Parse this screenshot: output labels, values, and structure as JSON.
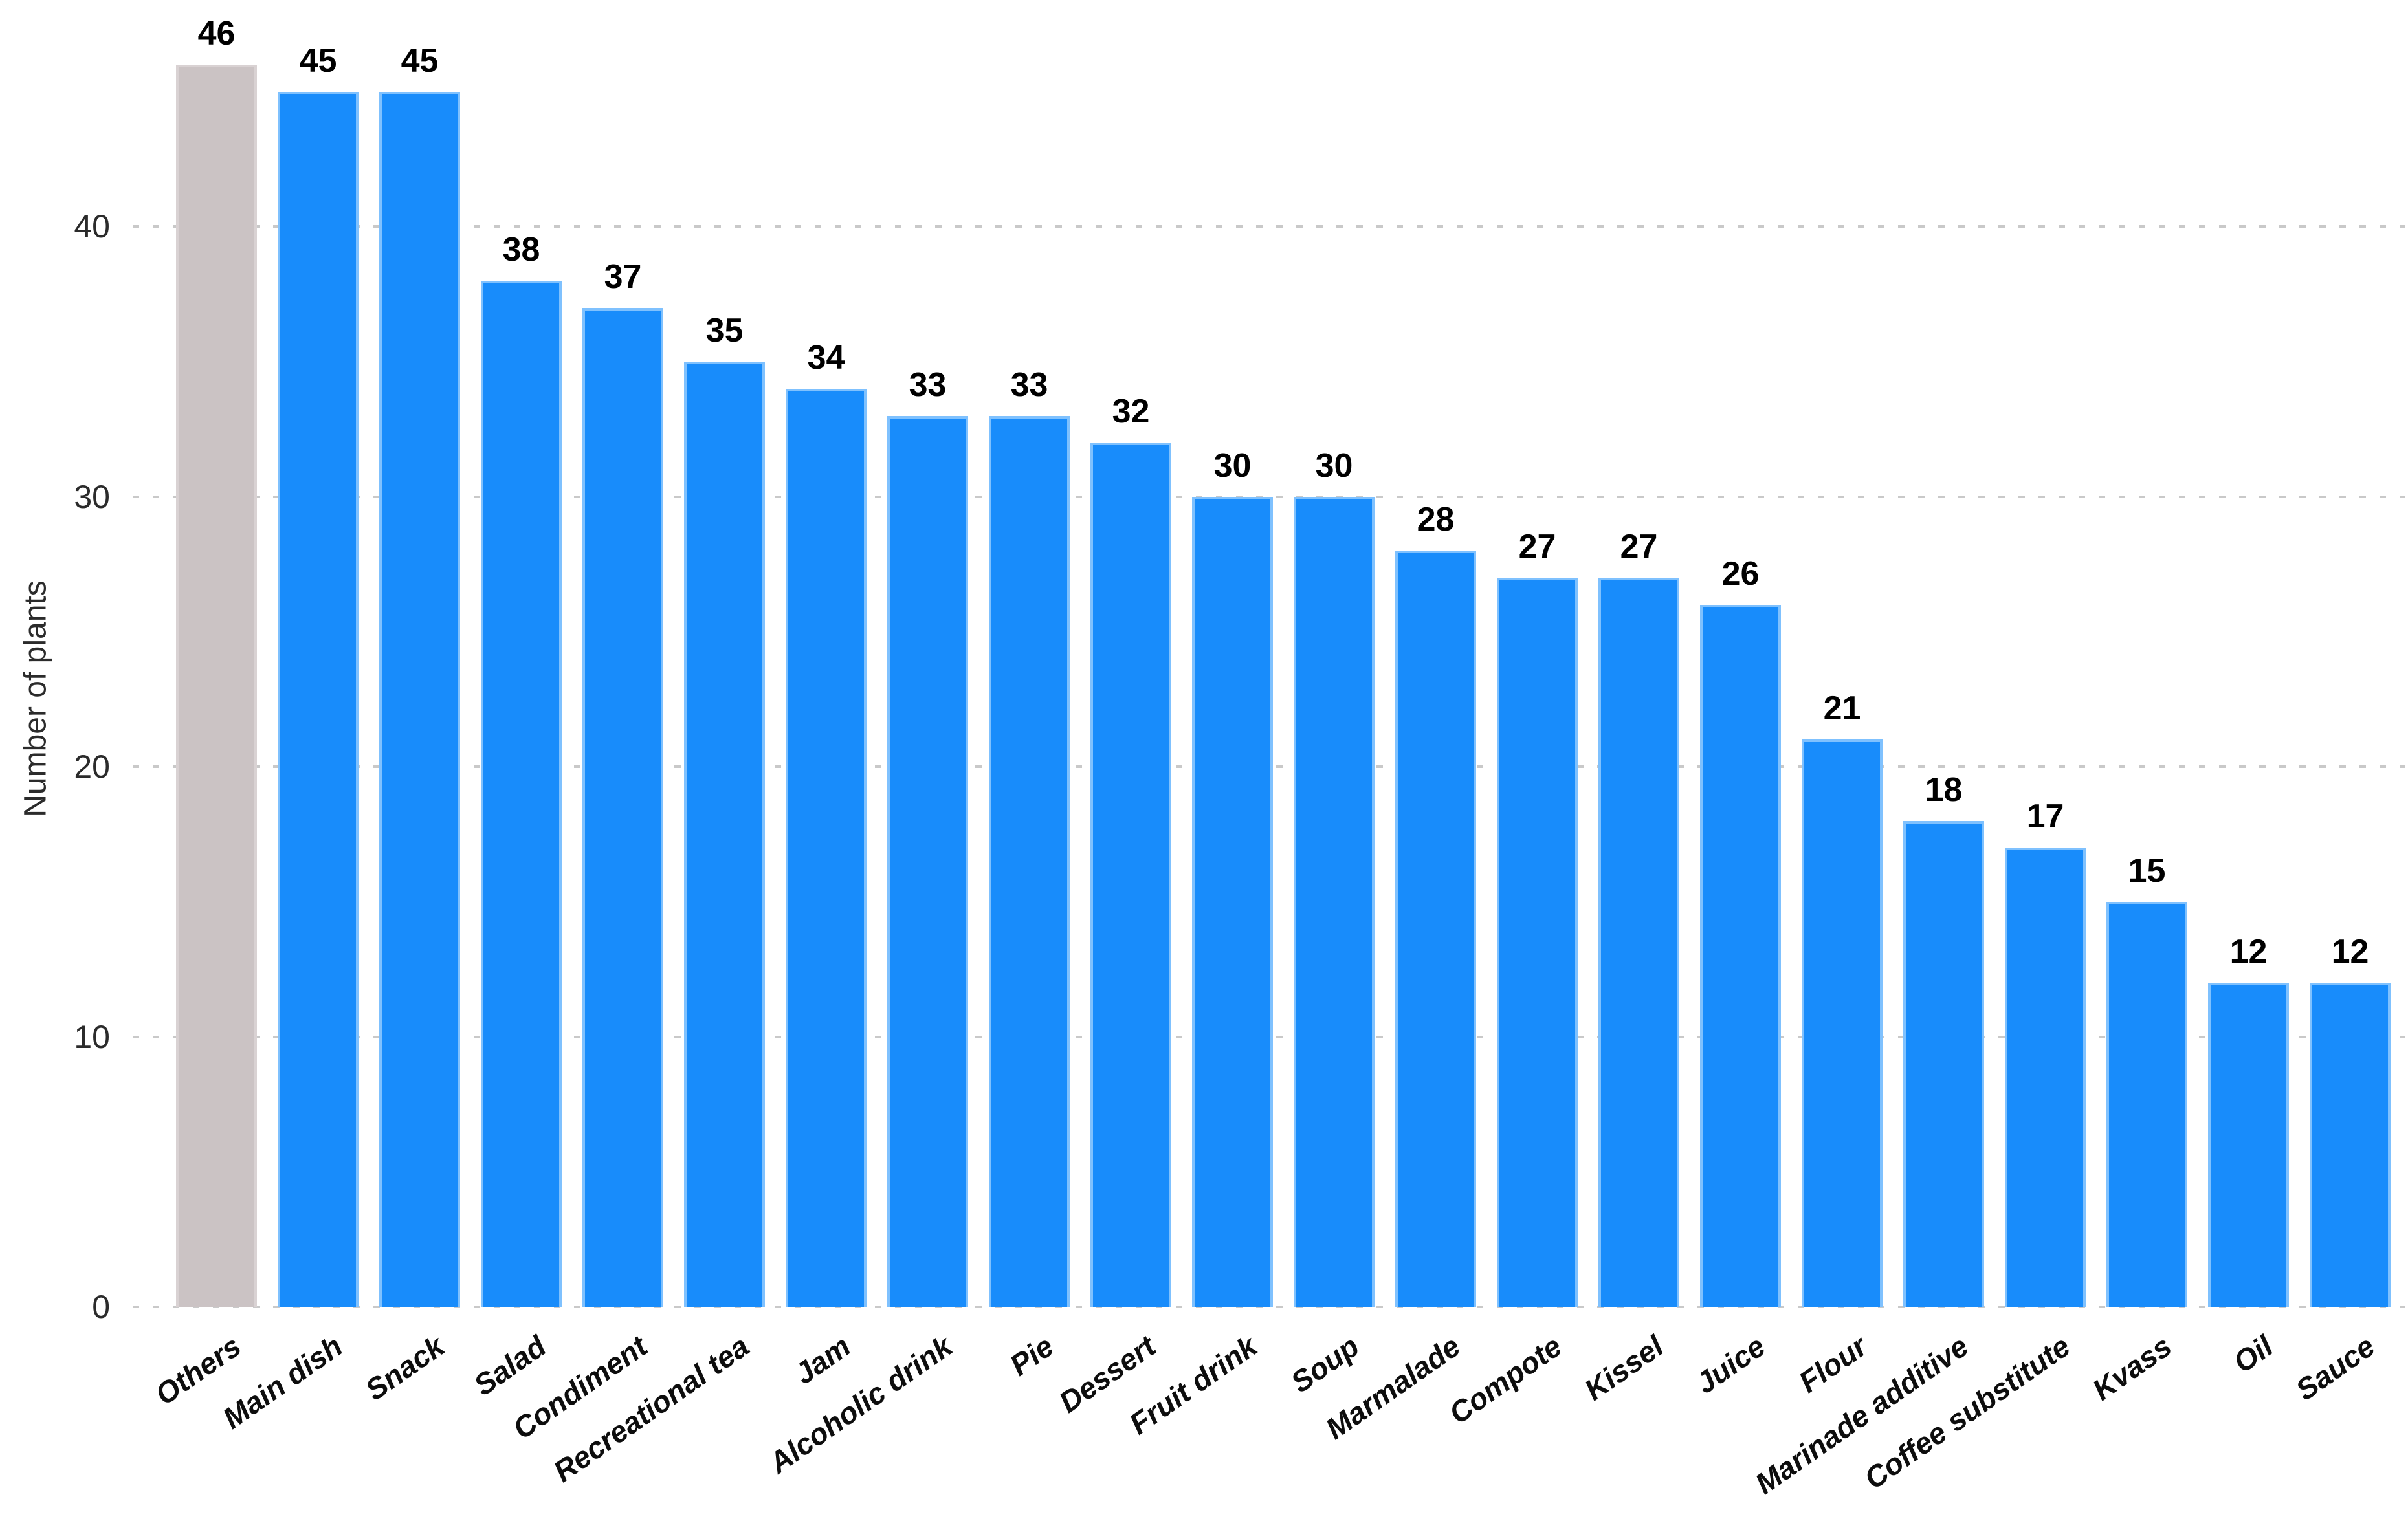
{
  "chart_data": {
    "type": "bar",
    "title": "",
    "ylabel": "Number of plants",
    "xlabel": "",
    "categories": [
      "Others",
      "Main dish",
      "Snack",
      "Salad",
      "Condiment",
      "Recreational tea",
      "Jam",
      "Alcoholic drink",
      "Pie",
      "Dessert",
      "Fruit drink",
      "Soup",
      "Marmalade",
      "Compote",
      "Kissel",
      "Juice",
      "Flour",
      "Marinade additive",
      "Coffee substitute",
      "Kvass",
      "Oil",
      "Sauce"
    ],
    "values": [
      46,
      45,
      45,
      38,
      37,
      35,
      34,
      33,
      33,
      32,
      30,
      30,
      28,
      27,
      27,
      26,
      21,
      18,
      17,
      15,
      12,
      12
    ],
    "value_labels_shown": true,
    "yticks": [
      0,
      10,
      20,
      30,
      40
    ],
    "ylim": [
      0,
      48
    ],
    "grid": "horizontal-dotted",
    "legend": "none",
    "x_tick_rotation_deg": 35,
    "colors": {
      "bar_default": "#188cfb",
      "bar_first": "#cbc3c4",
      "bar_edge_default": "#7fc1fe",
      "bar_edge_first": "#d9d2d3",
      "gridline": "#c9c9c9",
      "tick_label": "#2b2b2b",
      "value_label": "#000000",
      "background": "#ffffff"
    }
  }
}
